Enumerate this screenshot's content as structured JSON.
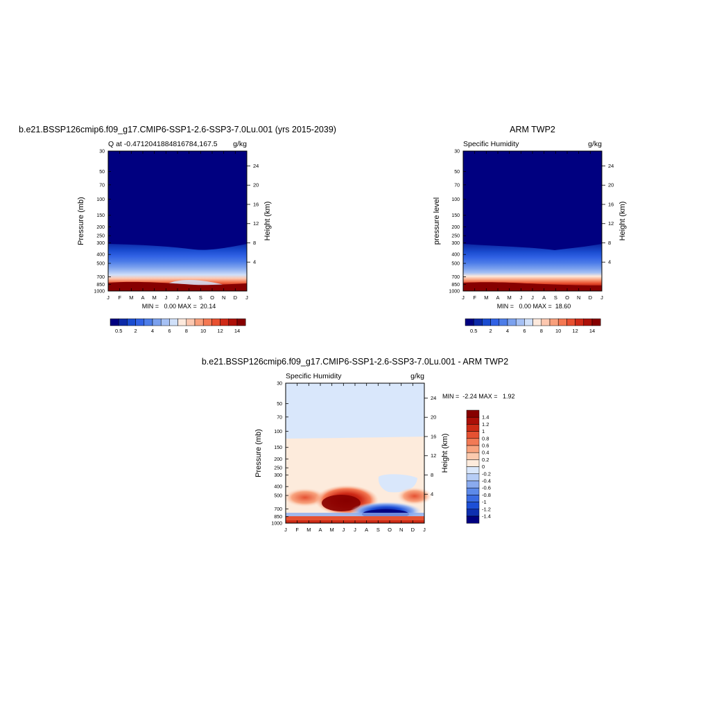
{
  "months": [
    "J",
    "F",
    "M",
    "A",
    "M",
    "J",
    "J",
    "A",
    "S",
    "O",
    "N",
    "D",
    "J"
  ],
  "pressure_ticks": [
    30,
    50,
    70,
    100,
    150,
    200,
    250,
    300,
    400,
    500,
    700,
    850,
    1000
  ],
  "height_ticks": [
    4,
    8,
    12,
    16,
    20,
    24
  ],
  "abs_colors": [
    "#000080",
    "#0d2aa7",
    "#1a4cd0",
    "#3162e4",
    "#4d7de8",
    "#7ba1ee",
    "#a6c1f4",
    "#d0e0f9",
    "#fde9dc",
    "#fcc8b0",
    "#f9a07c",
    "#f47852",
    "#e85030",
    "#cf2a17",
    "#ad1008",
    "#870000"
  ],
  "diff_colors": [
    "#000080",
    "#0e2fb0",
    "#1d4fd6",
    "#3a6be2",
    "#5d8ae9",
    "#8aabef",
    "#b6cdf6",
    "#d9e7fb",
    "#fdebdc",
    "#fbcaae",
    "#f8a47f",
    "#f27a55",
    "#e55132",
    "#cc2b16",
    "#ab0f08",
    "#870000"
  ],
  "chart_data": [
    {
      "type": "heatmap",
      "title": "b.e21.BSSP126cmip6.f09_g17.CMIP6-SSP1-2.6-SSP3-7.0Lu.001 (yrs 2015-2039)",
      "left_label": "Q at -0.4712041884816784,167.5",
      "right_label": "g/kg",
      "ylabel": "Pressure (mb)",
      "ylabel_right": "Height (km)",
      "stats": "MIN =   0.00 MAX =  20.14",
      "colorbar_labels": [
        "0.5",
        "2",
        "4",
        "6",
        "8",
        "10",
        "12",
        "14"
      ],
      "min": 0.0,
      "max": 20.14,
      "ylim": [
        30,
        1000
      ],
      "y_scale": "log"
    },
    {
      "type": "heatmap",
      "title": "ARM TWP2",
      "left_label": "Specific Humidity",
      "right_label": "g/kg",
      "ylabel": "pressure level",
      "ylabel_right": "Height (km)",
      "stats": "MIN =   0.00 MAX =  18.60",
      "colorbar_labels": [
        "0.5",
        "2",
        "4",
        "6",
        "8",
        "10",
        "12",
        "14"
      ],
      "min": 0.0,
      "max": 18.6,
      "ylim": [
        30,
        1000
      ],
      "y_scale": "log"
    },
    {
      "type": "heatmap",
      "title": "b.e21.BSSP126cmip6.f09_g17.CMIP6-SSP1-2.6-SSP3-7.0Lu.001 - ARM TWP2",
      "left_label": "Specific Humidity",
      "right_label": "g/kg",
      "ylabel": "Pressure (mb)",
      "ylabel_right": "Height (km)",
      "stats": "MIN =  -2.24 MAX =   1.92",
      "colorbar_labels": [
        "1.4",
        "1.2",
        "1",
        "0.8",
        "0.6",
        "0.4",
        "0.2",
        "0",
        "-0.2",
        "-0.4",
        "-0.6",
        "-0.8",
        "-1",
        "-1.2",
        "-1.4"
      ],
      "min": -2.24,
      "max": 1.92,
      "ylim": [
        30,
        1000
      ],
      "y_scale": "log"
    }
  ]
}
